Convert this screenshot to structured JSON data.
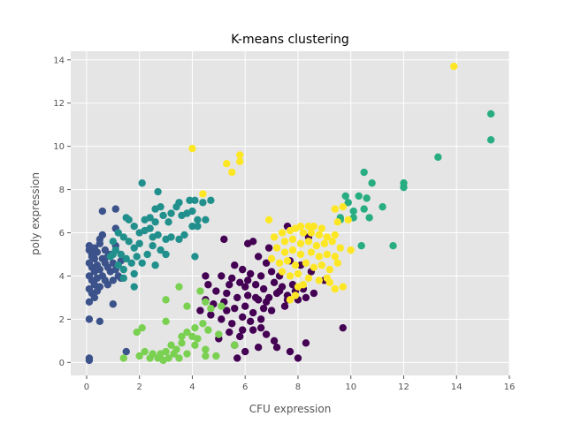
{
  "chart_data": {
    "type": "scatter",
    "title": "K-means clustering",
    "xlabel": "CFU expression",
    "ylabel": "poly expression",
    "xlim": [
      -0.6,
      16.0
    ],
    "ylim": [
      -0.6,
      14.4
    ],
    "xticks": [
      0,
      2,
      4,
      6,
      8,
      10,
      12,
      14,
      16
    ],
    "yticks": [
      0,
      2,
      4,
      6,
      8,
      10,
      12,
      14
    ],
    "grid": true,
    "legend": "none",
    "style": {
      "background": "#e5e5e5",
      "grid_color": "#ffffff",
      "tick_color": "#555555"
    },
    "series": [
      {
        "color": "#440154",
        "points": [
          [
            5.2,
            5.7
          ],
          [
            6.1,
            5.5
          ],
          [
            6.3,
            5.6
          ],
          [
            6.9,
            5.3
          ],
          [
            7.6,
            6.3
          ],
          [
            6.5,
            4.9
          ],
          [
            6.8,
            4.6
          ],
          [
            5.6,
            4.5
          ],
          [
            5.9,
            4.3
          ],
          [
            6.2,
            4.1
          ],
          [
            6.6,
            4.0
          ],
          [
            7.0,
            4.2
          ],
          [
            7.3,
            4.0
          ],
          [
            7.7,
            4.7
          ],
          [
            8.1,
            4.5
          ],
          [
            8.5,
            4.2
          ],
          [
            5.1,
            4.0
          ],
          [
            5.5,
            3.9
          ],
          [
            5.8,
            3.7
          ],
          [
            6.0,
            3.5
          ],
          [
            6.4,
            3.6
          ],
          [
            6.7,
            3.4
          ],
          [
            7.1,
            3.7
          ],
          [
            7.4,
            3.5
          ],
          [
            7.8,
            3.6
          ],
          [
            8.2,
            3.4
          ],
          [
            8.6,
            3.2
          ],
          [
            9.0,
            3.8
          ],
          [
            4.6,
            3.6
          ],
          [
            4.9,
            3.3
          ],
          [
            5.3,
            3.2
          ],
          [
            5.7,
            3.0
          ],
          [
            6.1,
            3.1
          ],
          [
            6.5,
            2.9
          ],
          [
            6.9,
            3.0
          ],
          [
            7.2,
            3.2
          ],
          [
            7.6,
            3.1
          ],
          [
            8.0,
            2.9
          ],
          [
            8.3,
            3.0
          ],
          [
            4.5,
            2.9
          ],
          [
            4.8,
            2.7
          ],
          [
            5.2,
            2.8
          ],
          [
            5.6,
            2.5
          ],
          [
            6.0,
            2.6
          ],
          [
            6.3,
            2.3
          ],
          [
            6.7,
            2.5
          ],
          [
            7.0,
            2.4
          ],
          [
            7.5,
            2.6
          ],
          [
            4.3,
            2.4
          ],
          [
            4.7,
            2.2
          ],
          [
            5.1,
            2.0
          ],
          [
            5.5,
            1.8
          ],
          [
            5.9,
            2.1
          ],
          [
            6.2,
            1.9
          ],
          [
            6.6,
            2.0
          ],
          [
            5.4,
            1.4
          ],
          [
            5.8,
            1.2
          ],
          [
            6.3,
            1.5
          ],
          [
            6.8,
            1.3
          ],
          [
            5.0,
            1.1
          ],
          [
            5.6,
            0.8
          ],
          [
            6.0,
            0.5
          ],
          [
            6.5,
            0.7
          ],
          [
            7.1,
            1.0
          ],
          [
            7.2,
            0.7
          ],
          [
            7.7,
            0.5
          ],
          [
            8.0,
            0.2
          ],
          [
            8.3,
            0.9
          ],
          [
            5.7,
            0.2
          ],
          [
            9.7,
            1.6
          ],
          [
            7.6,
            2.9
          ],
          [
            4.5,
            4.0
          ],
          [
            5.4,
            3.6
          ],
          [
            6.8,
            2.8
          ],
          [
            7.9,
            3.3
          ],
          [
            6.4,
            3.0
          ],
          [
            5.3,
            2.4
          ],
          [
            6.1,
            3.8
          ],
          [
            7.3,
            3.3
          ],
          [
            5.9,
            1.5
          ],
          [
            6.6,
            1.6
          ],
          [
            8.4,
            5.8
          ]
        ]
      },
      {
        "color": "#3b528b",
        "points": [
          [
            0.1,
            5.4
          ],
          [
            0.2,
            5.0
          ],
          [
            0.3,
            4.8
          ],
          [
            0.1,
            4.6
          ],
          [
            0.2,
            4.4
          ],
          [
            0.3,
            4.2
          ],
          [
            0.1,
            4.0
          ],
          [
            0.2,
            3.8
          ],
          [
            0.3,
            3.6
          ],
          [
            0.1,
            3.4
          ],
          [
            0.2,
            3.2
          ],
          [
            0.3,
            3.0
          ],
          [
            0.1,
            2.8
          ],
          [
            0.4,
            4.5
          ],
          [
            0.4,
            3.9
          ],
          [
            0.5,
            4.3
          ],
          [
            0.5,
            3.5
          ],
          [
            0.6,
            4.8
          ],
          [
            0.6,
            4.0
          ],
          [
            0.7,
            5.2
          ],
          [
            0.7,
            4.6
          ],
          [
            0.7,
            3.8
          ],
          [
            0.8,
            4.4
          ],
          [
            0.8,
            3.6
          ],
          [
            0.9,
            5.0
          ],
          [
            0.9,
            4.2
          ],
          [
            1.0,
            4.6
          ],
          [
            1.0,
            3.8
          ],
          [
            1.1,
            5.4
          ],
          [
            1.1,
            4.3
          ],
          [
            1.2,
            4.0
          ],
          [
            1.3,
            3.9
          ],
          [
            1.3,
            4.7
          ],
          [
            0.6,
            5.9
          ],
          [
            0.5,
            5.7
          ],
          [
            0.6,
            7.0
          ],
          [
            1.1,
            7.1
          ],
          [
            1.1,
            6.2
          ],
          [
            0.1,
            5.2
          ],
          [
            0.2,
            4.9
          ],
          [
            0.3,
            5.3
          ],
          [
            0.4,
            5.1
          ],
          [
            0.5,
            5.5
          ],
          [
            0.1,
            2.0
          ],
          [
            0.5,
            1.9
          ],
          [
            1.0,
            2.7
          ],
          [
            0.1,
            0.2
          ],
          [
            0.1,
            0.1
          ],
          [
            1.5,
            0.5
          ],
          [
            0.4,
            3.3
          ],
          [
            0.8,
            4.9
          ]
        ]
      },
      {
        "color": "#21908d",
        "points": [
          [
            2.1,
            8.3
          ],
          [
            2.7,
            7.9
          ],
          [
            2.6,
            7.1
          ],
          [
            2.8,
            7.2
          ],
          [
            3.4,
            7.2
          ],
          [
            3.5,
            7.4
          ],
          [
            3.9,
            7.5
          ],
          [
            4.1,
            7.5
          ],
          [
            4.4,
            7.4
          ],
          [
            4.7,
            7.5
          ],
          [
            3.2,
            6.9
          ],
          [
            3.6,
            6.8
          ],
          [
            3.8,
            6.9
          ],
          [
            4.0,
            7.0
          ],
          [
            4.2,
            6.6
          ],
          [
            4.5,
            6.6
          ],
          [
            2.2,
            6.6
          ],
          [
            2.4,
            6.7
          ],
          [
            2.6,
            6.5
          ],
          [
            2.9,
            6.8
          ],
          [
            3.1,
            6.5
          ],
          [
            1.5,
            6.7
          ],
          [
            1.6,
            6.6
          ],
          [
            1.8,
            6.3
          ],
          [
            2.0,
            6.0
          ],
          [
            2.2,
            6.1
          ],
          [
            2.4,
            6.2
          ],
          [
            2.5,
            5.8
          ],
          [
            2.7,
            5.9
          ],
          [
            3.0,
            5.7
          ],
          [
            3.2,
            5.8
          ],
          [
            3.5,
            5.7
          ],
          [
            3.7,
            5.9
          ],
          [
            4.0,
            6.3
          ],
          [
            1.2,
            6.0
          ],
          [
            1.4,
            5.8
          ],
          [
            1.6,
            5.6
          ],
          [
            1.8,
            5.3
          ],
          [
            2.0,
            5.5
          ],
          [
            2.3,
            5.0
          ],
          [
            2.5,
            5.4
          ],
          [
            2.8,
            5.2
          ],
          [
            1.0,
            5.6
          ],
          [
            1.1,
            5.2
          ],
          [
            1.3,
            5.0
          ],
          [
            1.5,
            4.8
          ],
          [
            1.7,
            4.6
          ],
          [
            1.9,
            4.9
          ],
          [
            2.1,
            4.6
          ],
          [
            2.6,
            4.5
          ],
          [
            3.0,
            5.0
          ],
          [
            1.2,
            4.5
          ],
          [
            1.4,
            4.3
          ],
          [
            1.8,
            4.1
          ],
          [
            1.8,
            3.5
          ],
          [
            1.4,
            3.9
          ],
          [
            4.1,
            4.9
          ],
          [
            0.9,
            4.9
          ],
          [
            1.0,
            5.0
          ],
          [
            4.2,
            6.3
          ]
        ]
      },
      {
        "color": "#27ad81",
        "points": [
          [
            15.3,
            11.5
          ],
          [
            15.3,
            10.3
          ],
          [
            13.3,
            9.5
          ],
          [
            12.0,
            8.3
          ],
          [
            12.0,
            8.1
          ],
          [
            10.5,
            8.8
          ],
          [
            10.3,
            7.7
          ],
          [
            10.8,
            8.3
          ],
          [
            10.6,
            7.6
          ],
          [
            11.2,
            7.2
          ],
          [
            10.5,
            7.1
          ],
          [
            10.1,
            7.0
          ],
          [
            9.9,
            7.4
          ],
          [
            10.7,
            6.7
          ],
          [
            9.6,
            6.7
          ],
          [
            10.1,
            6.7
          ],
          [
            9.8,
            7.7
          ],
          [
            9.6,
            6.6
          ],
          [
            11.6,
            5.4
          ],
          [
            10.4,
            5.4
          ]
        ]
      },
      {
        "color": "#7ad151",
        "points": [
          [
            3.5,
            3.5
          ],
          [
            4.3,
            3.3
          ],
          [
            4.5,
            2.8
          ],
          [
            3.8,
            2.6
          ],
          [
            4.7,
            2.5
          ],
          [
            5.1,
            2.6
          ],
          [
            3.0,
            2.9
          ],
          [
            2.1,
            1.6
          ],
          [
            3.0,
            1.9
          ],
          [
            1.9,
            1.4
          ],
          [
            4.4,
            1.8
          ],
          [
            4.1,
            1.6
          ],
          [
            4.6,
            1.5
          ],
          [
            3.8,
            1.4
          ],
          [
            4.0,
            1.2
          ],
          [
            5.0,
            1.3
          ],
          [
            3.6,
            1.2
          ],
          [
            4.2,
            1.1
          ],
          [
            3.2,
            0.8
          ],
          [
            3.6,
            0.9
          ],
          [
            4.1,
            0.8
          ],
          [
            4.5,
            0.6
          ],
          [
            3.4,
            0.6
          ],
          [
            3.8,
            0.4
          ],
          [
            2.2,
            0.5
          ],
          [
            2.5,
            0.4
          ],
          [
            2.8,
            0.4
          ],
          [
            3.0,
            0.5
          ],
          [
            4.5,
            0.3
          ],
          [
            2.0,
            0.3
          ],
          [
            2.4,
            0.2
          ],
          [
            2.7,
            0.2
          ],
          [
            3.1,
            0.2
          ],
          [
            3.5,
            0.2
          ],
          [
            1.4,
            0.2
          ],
          [
            4.9,
            0.3
          ],
          [
            5.6,
            0.8
          ],
          [
            3.3,
            0.4
          ],
          [
            2.9,
            0.1
          ]
        ]
      },
      {
        "color": "#fde725",
        "points": [
          [
            13.9,
            13.7
          ],
          [
            4.0,
            9.9
          ],
          [
            5.8,
            9.6
          ],
          [
            5.8,
            9.3
          ],
          [
            5.3,
            9.2
          ],
          [
            5.5,
            8.8
          ],
          [
            4.4,
            7.8
          ],
          [
            9.4,
            7.1
          ],
          [
            9.7,
            7.2
          ],
          [
            9.9,
            6.6
          ],
          [
            9.5,
            6.5
          ],
          [
            6.9,
            6.6
          ],
          [
            8.1,
            6.3
          ],
          [
            8.4,
            6.3
          ],
          [
            8.6,
            6.3
          ],
          [
            8.9,
            6.2
          ],
          [
            7.4,
            6.0
          ],
          [
            7.7,
            6.1
          ],
          [
            7.9,
            6.2
          ],
          [
            8.2,
            6.0
          ],
          [
            8.5,
            6.0
          ],
          [
            8.8,
            5.9
          ],
          [
            9.1,
            5.8
          ],
          [
            9.4,
            5.9
          ],
          [
            7.1,
            5.8
          ],
          [
            7.5,
            5.6
          ],
          [
            7.8,
            5.7
          ],
          [
            8.1,
            5.5
          ],
          [
            8.4,
            5.6
          ],
          [
            8.7,
            5.4
          ],
          [
            9.0,
            5.5
          ],
          [
            9.3,
            5.6
          ],
          [
            9.6,
            5.3
          ],
          [
            7.2,
            5.3
          ],
          [
            7.5,
            5.1
          ],
          [
            7.8,
            5.2
          ],
          [
            8.1,
            5.0
          ],
          [
            8.5,
            5.1
          ],
          [
            8.8,
            4.9
          ],
          [
            9.1,
            5.0
          ],
          [
            7.0,
            4.8
          ],
          [
            7.3,
            4.6
          ],
          [
            7.6,
            4.7
          ],
          [
            7.9,
            4.5
          ],
          [
            8.3,
            4.6
          ],
          [
            8.6,
            4.4
          ],
          [
            8.9,
            4.5
          ],
          [
            9.2,
            4.3
          ],
          [
            7.4,
            4.2
          ],
          [
            7.7,
            4.0
          ],
          [
            8.0,
            4.1
          ],
          [
            8.4,
            3.9
          ],
          [
            8.8,
            3.8
          ],
          [
            9.1,
            3.9
          ],
          [
            9.4,
            4.9
          ],
          [
            9.5,
            4.6
          ],
          [
            10.0,
            5.2
          ],
          [
            9.2,
            3.7
          ],
          [
            9.7,
            3.5
          ],
          [
            9.4,
            3.4
          ],
          [
            8.2,
            3.6
          ],
          [
            7.9,
            3.1
          ],
          [
            7.7,
            2.9
          ],
          [
            8.0,
            3.5
          ]
        ]
      }
    ]
  }
}
